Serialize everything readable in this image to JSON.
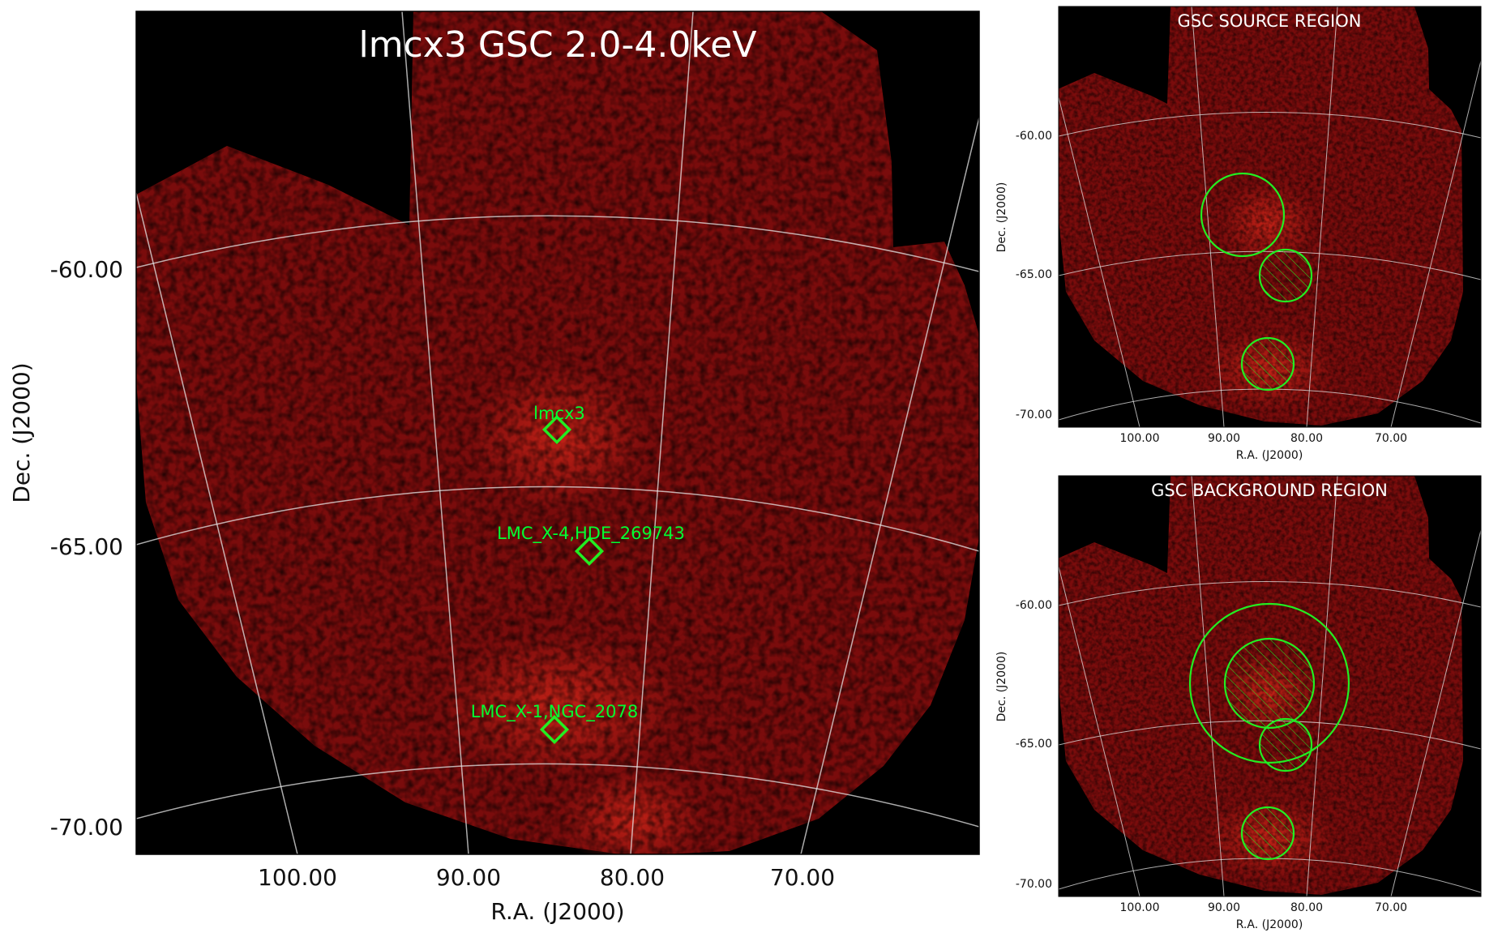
{
  "main_panel": {
    "title": "lmcx3 GSC 2.0-4.0keV",
    "xlabel": "R.A. (J2000)",
    "ylabel": "Dec. (J2000)",
    "x_ticks": [
      "100.00",
      "90.00",
      "80.00",
      "70.00"
    ],
    "y_ticks": [
      "-60.00",
      "-65.00",
      "-70.00"
    ],
    "sources": [
      {
        "name": "lmcx3",
        "ra": 84.7,
        "dec": -64.1
      },
      {
        "name": "LMC_X-4,HDE_269743",
        "ra": 83.2,
        "dec": -66.4
      },
      {
        "name": "LMC_X-1,NGC_2078",
        "ra": 84.9,
        "dec": -69.7
      }
    ]
  },
  "source_panel": {
    "title": "GSC SOURCE REGION",
    "xlabel": "R.A. (J2000)",
    "ylabel": "Dec. (J2000)",
    "x_ticks": [
      "100.00",
      "90.00",
      "80.00",
      "70.00"
    ],
    "y_ticks": [
      "-60.00",
      "-65.00",
      "-70.00"
    ]
  },
  "background_panel": {
    "title": "GSC BACKGROUND REGION",
    "xlabel": "R.A. (J2000)",
    "ylabel": "Dec. (J2000)",
    "x_ticks": [
      "100.00",
      "90.00",
      "80.00",
      "70.00"
    ],
    "y_ticks": [
      "-60.00",
      "-65.00",
      "-70.00"
    ]
  },
  "colors": {
    "image_base": "#7a0c0c",
    "image_hot": "#c41d10",
    "sky_background": "#000000",
    "region_green": "#22ee22",
    "grid": "#e6e6e6"
  }
}
